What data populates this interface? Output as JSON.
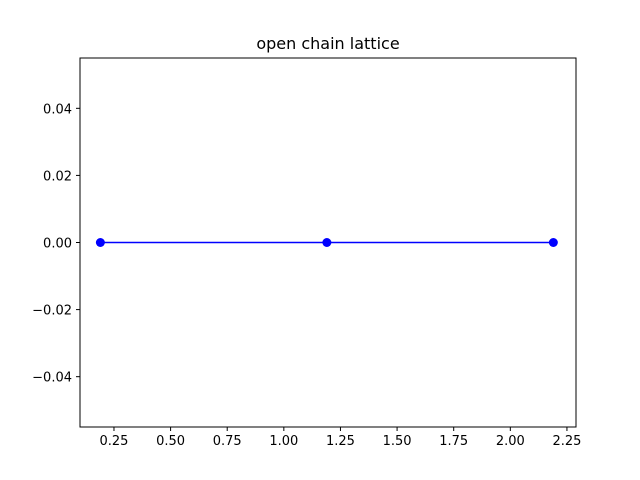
{
  "chart_data": {
    "type": "line",
    "title": "open chain lattice",
    "xlabel": "",
    "ylabel": "",
    "xlim": [
      0.1,
      2.29
    ],
    "ylim": [
      -0.055,
      0.055
    ],
    "x_ticks": [
      0.25,
      0.5,
      0.75,
      1.0,
      1.25,
      1.5,
      1.75,
      2.0,
      2.25
    ],
    "x_tick_labels": [
      "0.25",
      "0.50",
      "0.75",
      "1.00",
      "1.25",
      "1.50",
      "1.75",
      "2.00",
      "2.25"
    ],
    "y_ticks": [
      0.04,
      0.02,
      0.0,
      -0.02,
      -0.04
    ],
    "y_tick_labels": [
      "0.04",
      "0.02",
      "0.00",
      "−0.02",
      "−0.04"
    ],
    "grid": false,
    "series": [
      {
        "x": [
          0.19,
          1.19,
          2.19
        ],
        "y": [
          0,
          0,
          0
        ],
        "color": "#0000ff",
        "marker": "circle"
      }
    ]
  }
}
